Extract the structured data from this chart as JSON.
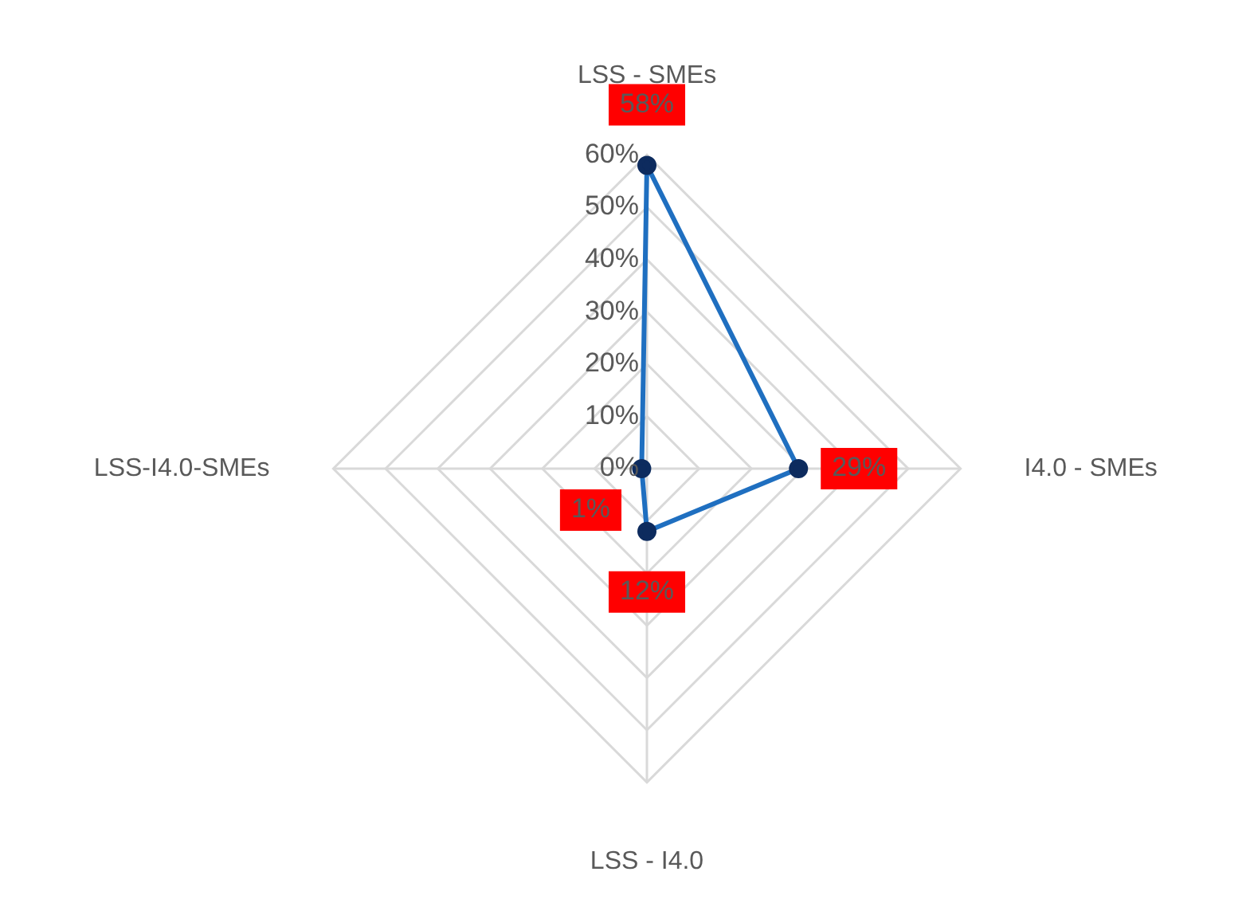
{
  "chart_data": {
    "type": "radar",
    "categories": [
      "LSS - SMEs",
      "I4.0 - SMEs",
      "LSS - I4.0",
      "LSS-I4.0-SMEs"
    ],
    "series": [
      {
        "color": "#1f6fc0",
        "values": [
          58,
          29,
          12,
          1
        ],
        "value_labels": [
          "58%",
          "29%",
          "12%",
          "1%"
        ]
      }
    ],
    "ylim": [
      0,
      60
    ],
    "yticks": [
      {
        "value": 0,
        "label": "0%"
      },
      {
        "value": 10,
        "label": "10%"
      },
      {
        "value": 20,
        "label": "20%"
      },
      {
        "value": 30,
        "label": "30%"
      },
      {
        "value": 40,
        "label": "40%"
      },
      {
        "value": 50,
        "label": "50%"
      },
      {
        "value": 60,
        "label": "60%"
      }
    ],
    "grid": true,
    "marker": "circle",
    "legend": false
  }
}
